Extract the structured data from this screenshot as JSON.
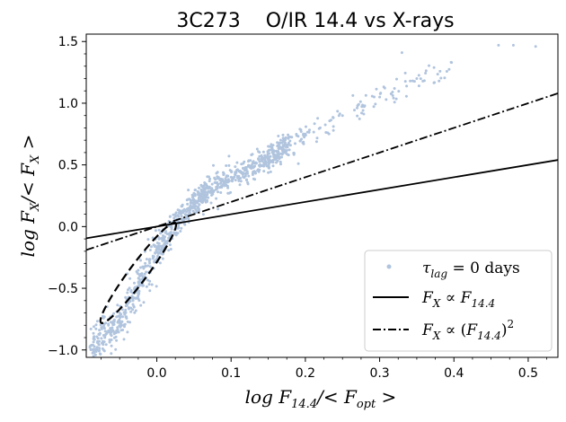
{
  "chart_data": {
    "type": "scatter",
    "title": "3C273    O/IR 14.4 vs X-rays",
    "xlabel": "log F_{14.4}/<F_{opt}>",
    "ylabel": "log F_X/<F_X>",
    "xlim": [
      -0.095,
      0.54
    ],
    "ylim": [
      -1.06,
      1.56
    ],
    "x_ticks": [
      0.0,
      0.1,
      0.2,
      0.3,
      0.4,
      0.5
    ],
    "x_tick_labels": [
      "0.0",
      "0.1",
      "0.2",
      "0.3",
      "0.4",
      "0.5"
    ],
    "y_ticks": [
      -1.0,
      -0.5,
      0.0,
      0.5,
      1.0,
      1.5
    ],
    "y_tick_labels": [
      "−1.0",
      "−0.5",
      "0.0",
      "0.5",
      "1.0",
      "1.5"
    ],
    "grid": false,
    "legend_position": "lower-right",
    "point_color": "#b0c4de",
    "scatter_trend": {
      "description_points": [
        [
          -0.09,
          -0.98
        ],
        [
          -0.06,
          -0.85
        ],
        [
          -0.03,
          -0.55
        ],
        [
          0.0,
          -0.2
        ],
        [
          0.03,
          0.05
        ],
        [
          0.06,
          0.25
        ],
        [
          0.1,
          0.4
        ],
        [
          0.15,
          0.55
        ],
        [
          0.2,
          0.75
        ],
        [
          0.25,
          0.9
        ],
        [
          0.3,
          1.05
        ],
        [
          0.35,
          1.2
        ],
        [
          0.5,
          1.47
        ]
      ]
    },
    "series": [
      {
        "name": "τ_lag = 0  days",
        "kind": "scatter",
        "color": "#b0c4de",
        "sample_points": [
          [
            -0.09,
            -0.98
          ],
          [
            -0.08,
            -0.94
          ],
          [
            -0.07,
            -0.9
          ],
          [
            -0.06,
            -0.82
          ],
          [
            -0.05,
            -0.7
          ],
          [
            -0.04,
            -0.6
          ],
          [
            -0.03,
            -0.5
          ],
          [
            -0.02,
            -0.38
          ],
          [
            -0.01,
            -0.28
          ],
          [
            0.0,
            -0.18
          ],
          [
            0.01,
            -0.1
          ],
          [
            0.02,
            -0.02
          ],
          [
            0.03,
            0.06
          ],
          [
            0.04,
            0.12
          ],
          [
            0.05,
            0.18
          ],
          [
            0.06,
            0.24
          ],
          [
            0.08,
            0.32
          ],
          [
            0.1,
            0.4
          ],
          [
            0.12,
            0.46
          ],
          [
            0.15,
            0.55
          ],
          [
            0.18,
            0.66
          ],
          [
            0.2,
            0.75
          ],
          [
            0.22,
            0.8
          ],
          [
            0.25,
            0.9
          ],
          [
            0.28,
            0.98
          ],
          [
            0.3,
            1.05
          ],
          [
            0.32,
            1.12
          ],
          [
            0.33,
            1.41
          ],
          [
            0.35,
            1.2
          ],
          [
            0.38,
            1.18
          ],
          [
            0.46,
            1.47
          ],
          [
            0.48,
            1.47
          ],
          [
            0.51,
            1.46
          ]
        ]
      },
      {
        "name": "F_X ∝ F_{14.4}",
        "kind": "line",
        "style": "solid",
        "color": "#000000",
        "points": [
          [
            -0.095,
            -0.095
          ],
          [
            0.54,
            0.54
          ]
        ]
      },
      {
        "name": "F_X ∝ (F_{14.4})^2",
        "kind": "line",
        "style": "dashdot",
        "color": "#000000",
        "points": [
          [
            -0.095,
            -0.19
          ],
          [
            0.54,
            1.08
          ]
        ]
      }
    ],
    "ellipse": {
      "style": "dashed",
      "color": "#000000",
      "center": [
        -0.023,
        -0.38
      ],
      "endpoints": [
        [
          -0.075,
          -0.78
        ],
        [
          0.025,
          0.03
        ]
      ],
      "minor_halfwidth_data_x": 0.012
    },
    "legend": [
      {
        "label": "τ_lag = 0  days",
        "marker": "point"
      },
      {
        "label": "F_X ∝ F_{14.4}",
        "marker": "solid"
      },
      {
        "label": "F_X ∝ (F_{14.4})^2",
        "marker": "dashdot"
      }
    ]
  }
}
